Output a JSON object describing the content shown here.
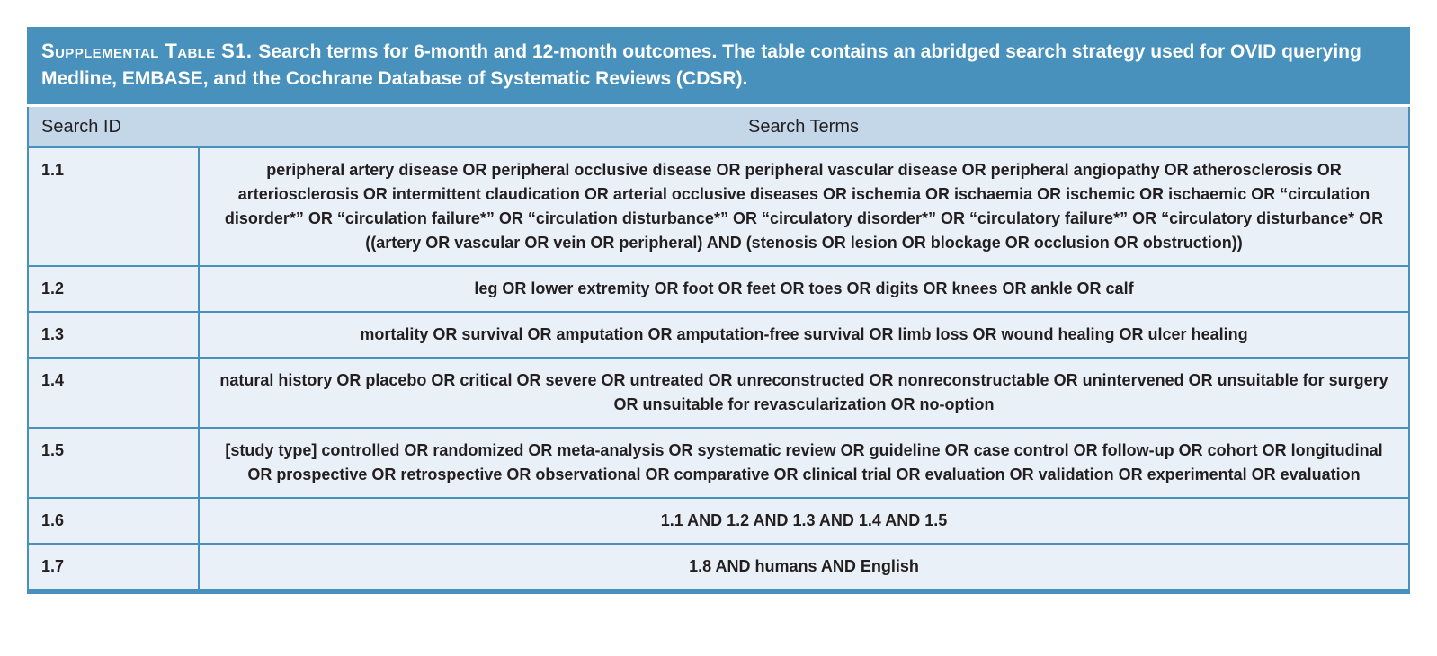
{
  "header": {
    "label": "Supplemental Table S1.",
    "text": "Search terms for 6-month and 12-month outcomes. The table contains an abridged search strategy used for OVID querying Medline, EMBASE, and the Cochrane Database of Systematic Reviews (CDSR)."
  },
  "columns": {
    "id": "Search ID",
    "terms": "Search Terms"
  },
  "rows": [
    {
      "id": "1.1",
      "terms": "peripheral artery disease OR peripheral occlusive disease OR peripheral vascular disease OR peripheral angiopathy OR atherosclerosis OR arteriosclerosis OR intermittent claudication OR arterial occlusive diseases OR ischemia OR ischaemia OR ischemic OR ischaemic OR “circulation disorder*” OR “circulation failure*” OR “circulation disturbance*” OR “circulatory disorder*” OR “circulatory failure*” OR “circulatory disturbance* OR ((artery OR vascular OR vein OR peripheral) AND (stenosis OR lesion OR blockage OR occlusion OR obstruction))"
    },
    {
      "id": "1.2",
      "terms": "leg OR lower extremity OR foot OR feet OR toes OR digits OR knees OR ankle OR calf"
    },
    {
      "id": "1.3",
      "terms": "mortality OR survival OR amputation OR amputation-free survival OR limb loss OR wound healing OR ulcer healing"
    },
    {
      "id": "1.4",
      "terms": "natural history OR placebo OR critical OR severe OR untreated OR unreconstructed OR nonreconstructable OR unintervened OR unsuitable for surgery OR unsuitable for revascularization OR no-option"
    },
    {
      "id": "1.5",
      "terms": "[study type] controlled OR randomized OR meta-analysis OR systematic review OR guideline OR case control OR follow-up OR cohort OR longitudinal OR prospective OR retrospective OR observational OR comparative OR clinical trial OR evaluation OR validation OR experimental OR evaluation"
    },
    {
      "id": "1.6",
      "terms": "1.1 AND 1.2 AND 1.3 AND 1.4 AND 1.5"
    },
    {
      "id": "1.7",
      "terms": "1.8 AND humans AND English"
    }
  ],
  "colors": {
    "caption_bg": "#4891bd",
    "caption_text": "#ffffff",
    "column_header_bg": "#c3d7e9",
    "row_bg": "#eaf0f7",
    "border": "#4891bd",
    "body_text": "#231f20"
  }
}
